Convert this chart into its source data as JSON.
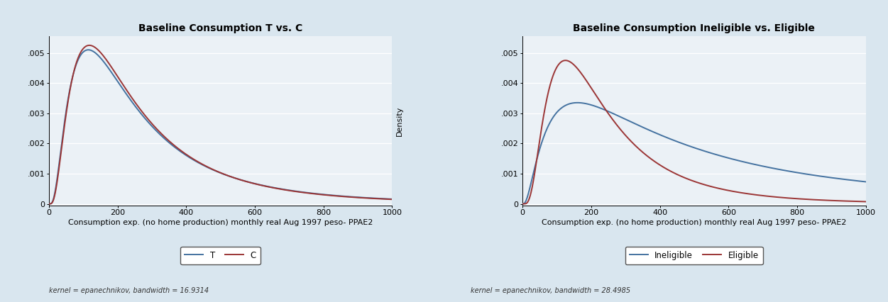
{
  "title1": "Baseline Consumption T vs. C",
  "title2": "Baseline Consumption Ineligible vs. Eligible",
  "xlabel": "Consumption exp. (no home production) monthly real Aug 1997 peso- PPAE2",
  "ylabel": "Density",
  "xlim": [
    0,
    1000
  ],
  "ylim": [
    -5e-05,
    0.00555
  ],
  "xticks": [
    0,
    200,
    400,
    600,
    800,
    1000
  ],
  "yticks": [
    0,
    0.001,
    0.002,
    0.003,
    0.004,
    0.005
  ],
  "ytick_labels": [
    "0",
    ".001",
    ".002",
    ".003",
    ".004",
    ".005"
  ],
  "color_blue": "#4472A0",
  "color_red": "#9B3535",
  "legend1": [
    "T",
    "C"
  ],
  "legend2": [
    "Ineligible",
    "Eligible"
  ],
  "bandwidth1": 16.9314,
  "bandwidth2": 28.4985,
  "kernel_text1": "kernel = epanechnikov, bandwidth = 16.9314",
  "kernel_text2": "kernel = epanechnikov, bandwidth = 28.4985",
  "bg_color": "#D9E6EF",
  "plot_bg_color": "#EBF1F6",
  "title_fontsize": 10,
  "label_fontsize": 8,
  "tick_fontsize": 8,
  "legend_fontsize": 8.5,
  "kernel_fontsize": 7,
  "panel1_T_peak": [
    120,
    0.0051
  ],
  "panel1_C_peak": [
    115,
    0.00525
  ],
  "panel2_inelig_peak": [
    160,
    0.00335
  ],
  "panel2_elig_peak": [
    130,
    0.00475
  ]
}
